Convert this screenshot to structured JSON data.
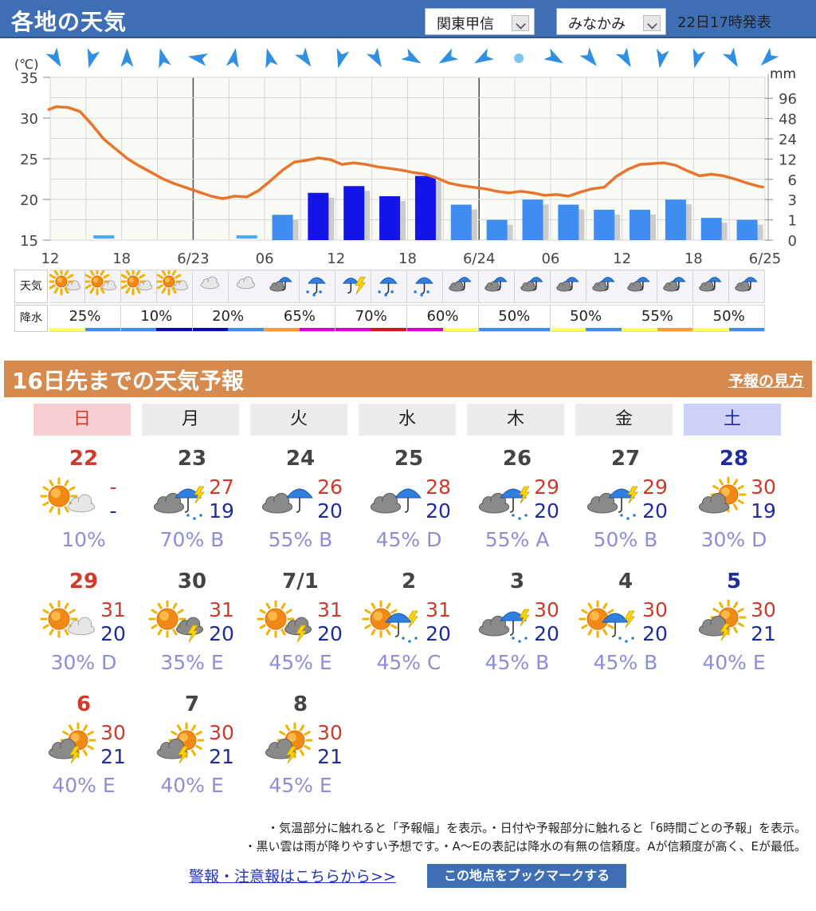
{
  "header": {
    "title": "各地の天気",
    "region": "関東甲信",
    "area": "みなかみ",
    "issued": "22日17時発表"
  },
  "colors": {
    "header_bg": "#3e6fb5",
    "temp_line": "#e8752d",
    "rain_bar_light": "#3d8ef0",
    "rain_bar_dark": "#1414e6",
    "sunday": "#d13a2a",
    "saturday": "#1f2ba0",
    "long_header_bg": "#d68a4e"
  },
  "chart_data": {
    "type": "line",
    "y_temp_unit": "(℃)",
    "y_rain_unit": "mm",
    "temp_ticks": [
      "35",
      "30",
      "25",
      "20",
      "15"
    ],
    "rain_ticks": [
      "96",
      "48",
      "24",
      "12",
      "6",
      "3",
      "1",
      "0"
    ],
    "x_tick_labels": [
      "12",
      "18",
      "6/23",
      "06",
      "12",
      "18",
      "6/24",
      "06",
      "12",
      "18",
      "6/25"
    ],
    "x_hours": [
      0,
      6,
      12,
      18,
      24,
      30,
      36,
      42,
      48,
      54,
      60
    ],
    "ylim_temp": [
      15,
      35
    ],
    "grid": true,
    "series": [
      {
        "key": "temperature",
        "x_hours": [
          -0.2,
          0.5,
          1.5,
          2.5,
          3.5,
          4.5,
          5.5,
          6.5,
          7.5,
          8.5,
          9.5,
          10.5,
          11.5,
          12.5,
          13.5,
          14.5,
          15.5,
          16.5,
          17.5,
          18.5,
          19.5,
          20.5,
          21.5,
          22.5,
          23.5,
          24.5,
          25.5,
          26.5,
          27.5,
          28.5,
          29.5,
          30.5,
          31.5,
          32.5,
          33.5,
          34.5,
          35.5,
          36.5,
          37.5,
          38.5,
          39.5,
          40.5,
          41.5,
          42.5,
          43.5,
          44.5,
          45.5,
          46.5,
          47.5,
          48.5,
          49.5,
          50.5,
          51.5,
          52.5,
          53.5,
          54.5,
          55.5,
          56.5,
          57.5,
          58.5,
          59.5,
          59.9
        ],
        "values": [
          31.0,
          31.4,
          31.3,
          30.8,
          29.2,
          27.4,
          26.2,
          25.0,
          24.1,
          23.3,
          22.5,
          21.9,
          21.4,
          20.9,
          20.4,
          20.1,
          20.4,
          20.3,
          21.1,
          22.3,
          23.6,
          24.6,
          24.8,
          25.1,
          24.9,
          24.3,
          24.5,
          24.3,
          24.0,
          23.8,
          23.6,
          23.3,
          23.1,
          22.6,
          22.0,
          21.7,
          21.5,
          21.3,
          21.0,
          20.8,
          21.0,
          20.8,
          20.5,
          20.6,
          20.4,
          20.9,
          21.3,
          21.5,
          22.8,
          23.7,
          24.3,
          24.4,
          24.5,
          24.2,
          23.5,
          22.9,
          23.1,
          22.9,
          22.5,
          22.0,
          21.6,
          21.5
        ],
        "name": ""
      },
      {
        "key": "precipitation_bars",
        "x_hours": [
          4.5,
          16.5,
          19.5,
          22.5,
          25.5,
          28.5,
          31.5,
          34.5,
          37.5,
          40.5,
          43.5,
          46.5,
          49.5,
          52.5,
          55.5,
          58.5
        ],
        "values_mm": [
          0.1,
          0.1,
          1.5,
          4,
          5,
          3.5,
          7,
          2.5,
          1,
          3,
          2.5,
          2,
          2,
          3,
          1.2,
          1
        ],
        "dark": [
          false,
          false,
          false,
          true,
          true,
          true,
          true,
          false,
          false,
          false,
          false,
          false,
          false,
          false,
          false,
          false
        ],
        "name": ""
      }
    ],
    "wind_directions_deg": [
      330,
      15,
      180,
      165,
      100,
      190,
      165,
      325,
      15,
      330,
      300,
      60,
      60,
      null,
      300,
      320,
      330,
      10,
      15,
      330,
      45
    ],
    "weather_icons_3h": [
      "sunny-cloudy-icon",
      "sunny-cloudy-icon",
      "sunny-cloudy-icon",
      "sunny-cloudy-icon",
      "cloudy-icon",
      "cloudy-icon",
      "rain-cloud-icon",
      "umbrella-icon",
      "thunder-rain-icon",
      "umbrella-icon",
      "umbrella-icon",
      "rain-cloud-icon",
      "rain-cloud-icon",
      "rain-cloud-icon",
      "rain-cloud-icon",
      "rain-cloud-icon",
      "rain-cloud-icon",
      "rain-cloud-icon",
      "rain-cloud-icon",
      "rain-cloud-icon"
    ],
    "pop_labels": [
      "25%",
      "10%",
      "20%",
      "65%",
      "70%",
      "60%",
      "50%",
      "50%",
      "55%",
      "50%"
    ],
    "pop_bar_colors": [
      [
        "#ffff66",
        "#3d8ef0"
      ],
      [
        "#3d8ef0",
        "#0a0aa0"
      ],
      [
        "#0a0aa0",
        "#3d8ef0"
      ],
      [
        "#ff9a3d",
        "#d200d2"
      ],
      [
        "#d200d2",
        "#c81e1e"
      ],
      [
        "#d200d2",
        "#ffff66"
      ],
      [
        "#3d8ef0",
        "#3d8ef0"
      ],
      [
        "#ffff66",
        "#3d8ef0"
      ],
      [
        "#ffff66",
        "#ff9a3d"
      ],
      [
        "#ffff66",
        "#3d8ef0"
      ]
    ]
  },
  "row_labels": {
    "weather": "天気",
    "pop": "降水"
  },
  "long_range": {
    "title": "16日先までの天気予報",
    "how_to_read": "予報の見方",
    "weekdays": [
      "日",
      "月",
      "火",
      "水",
      "木",
      "金",
      "土"
    ],
    "days": [
      {
        "date": "22",
        "hi": "-",
        "lo": "-",
        "rain": "10%",
        "icon": "sunny-cloudy-icon"
      },
      {
        "date": "23",
        "hi": "27",
        "lo": "19",
        "rain": "70% B",
        "icon": "cloudy-rain-thunder-icon"
      },
      {
        "date": "24",
        "hi": "26",
        "lo": "20",
        "rain": "55% B",
        "icon": "cloudy-rain-icon"
      },
      {
        "date": "25",
        "hi": "28",
        "lo": "20",
        "rain": "45% D",
        "icon": "cloudy-rain-icon"
      },
      {
        "date": "26",
        "hi": "29",
        "lo": "20",
        "rain": "55% A",
        "icon": "cloudy-rain-thunder-icon"
      },
      {
        "date": "27",
        "hi": "29",
        "lo": "20",
        "rain": "50% B",
        "icon": "cloudy-rain-thunder-icon"
      },
      {
        "date": "28",
        "hi": "30",
        "lo": "19",
        "rain": "30% D",
        "icon": "cloudy-sunny-icon"
      },
      {
        "date": "29",
        "hi": "31",
        "lo": "20",
        "rain": "30% D",
        "icon": "sunny-cloudy-icon"
      },
      {
        "date": "30",
        "hi": "31",
        "lo": "20",
        "rain": "35% E",
        "icon": "sunny-thunder-icon"
      },
      {
        "date": "7/1",
        "hi": "31",
        "lo": "20",
        "rain": "45% E",
        "icon": "sunny-thunder-icon"
      },
      {
        "date": "2",
        "hi": "31",
        "lo": "20",
        "rain": "45% C",
        "icon": "sunny-rain-thunder-icon"
      },
      {
        "date": "3",
        "hi": "30",
        "lo": "20",
        "rain": "45% B",
        "icon": "cloudy-rain-thunder-icon"
      },
      {
        "date": "4",
        "hi": "30",
        "lo": "20",
        "rain": "45% B",
        "icon": "sunny-rain-thunder-icon"
      },
      {
        "date": "5",
        "hi": "30",
        "lo": "21",
        "rain": "40% E",
        "icon": "cloudy-sunny-thunder-icon"
      },
      {
        "date": "6",
        "hi": "30",
        "lo": "21",
        "rain": "40% E",
        "icon": "cloudy-sunny-thunder-icon"
      },
      {
        "date": "7",
        "hi": "30",
        "lo": "21",
        "rain": "40% E",
        "icon": "cloudy-sunny-thunder-icon"
      },
      {
        "date": "8",
        "hi": "30",
        "lo": "21",
        "rain": "45% E",
        "icon": "cloudy-sunny-thunder-icon"
      }
    ],
    "date_colors": [
      "sun",
      "",
      "",
      "",
      "",
      "",
      "sat",
      "sun",
      "",
      "",
      "",
      "",
      "",
      "sat",
      "sun",
      "",
      ""
    ]
  },
  "notes": {
    "line1": "・気温部分に触れると「予報幅」を表示。・日付や予報部分に触れると「6時間ごとの予報」を表示。",
    "line2": "・黒い雲は雨が降りやすい予想です。・A〜Eの表記は降水の有無の信頼度。Aが信頼度が高く、Eが最低。"
  },
  "footer": {
    "warnings_link": "警報・注意報はこちらから>>",
    "bookmark_button": "この地点をブックマークする"
  }
}
